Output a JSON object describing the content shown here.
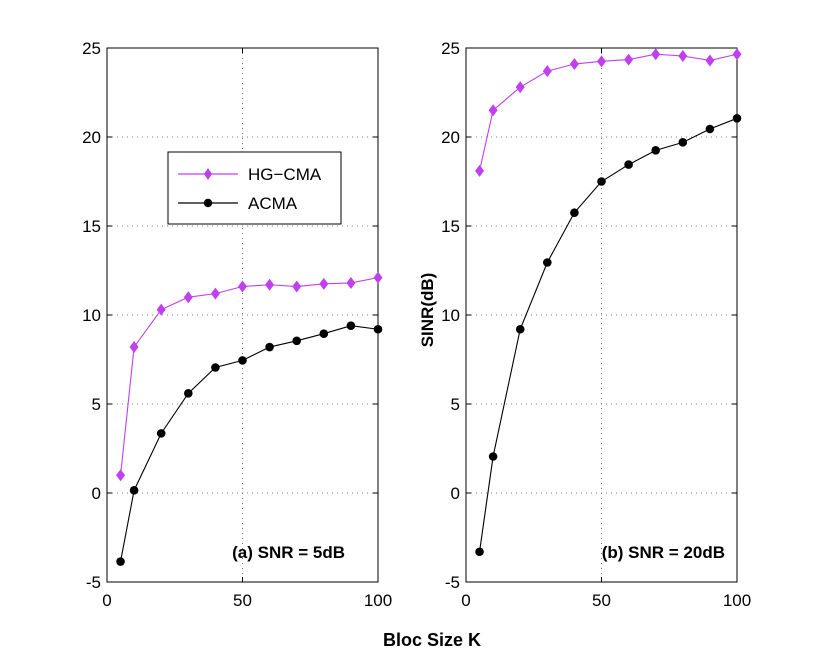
{
  "xlabel": "Bloc Size K",
  "colors": {
    "hgcma": "#c040f0",
    "acma": "#000000"
  },
  "legend": {
    "items": [
      "HG−CMA",
      "ACMA"
    ],
    "placement": "center-left"
  },
  "chart_data": [
    {
      "type": "line",
      "annotation": "(a) SNR = 5dB",
      "xlabel": "",
      "ylabel": "",
      "xlim": [
        0,
        100
      ],
      "ylim": [
        -5,
        25
      ],
      "xticks": [
        0,
        50,
        100
      ],
      "yticks": [
        -5,
        0,
        5,
        10,
        15,
        20,
        25
      ],
      "grid": true,
      "x": [
        5,
        10,
        20,
        30,
        40,
        50,
        60,
        70,
        80,
        90,
        100
      ],
      "series": [
        {
          "name": "HG−CMA",
          "marker": "diamond",
          "values": [
            1.0,
            8.2,
            10.3,
            11.0,
            11.2,
            11.6,
            11.7,
            11.6,
            11.75,
            11.8,
            12.1
          ]
        },
        {
          "name": "ACMA",
          "marker": "circle",
          "values": [
            -3.85,
            0.15,
            3.35,
            5.6,
            7.05,
            7.45,
            8.2,
            8.55,
            8.95,
            9.4,
            9.2
          ]
        }
      ]
    },
    {
      "type": "line",
      "annotation": "(b) SNR = 20dB",
      "xlabel": "",
      "ylabel": "SINR(dB)",
      "xlim": [
        0,
        100
      ],
      "ylim": [
        -5,
        25
      ],
      "xticks": [
        0,
        50,
        100
      ],
      "yticks": [
        -5,
        0,
        5,
        10,
        15,
        20,
        25
      ],
      "grid": true,
      "x": [
        5,
        10,
        20,
        30,
        40,
        50,
        60,
        70,
        80,
        90,
        100
      ],
      "series": [
        {
          "name": "HG−CMA",
          "marker": "diamond",
          "values": [
            18.1,
            21.5,
            22.8,
            23.7,
            24.1,
            24.25,
            24.35,
            24.65,
            24.55,
            24.3,
            24.65
          ]
        },
        {
          "name": "ACMA",
          "marker": "circle",
          "values": [
            -3.3,
            2.05,
            9.2,
            12.95,
            15.75,
            17.5,
            18.45,
            19.25,
            19.7,
            20.45,
            21.05
          ]
        }
      ]
    }
  ]
}
